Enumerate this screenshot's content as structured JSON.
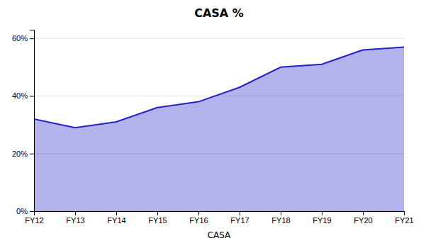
{
  "chart_data": {
    "type": "area",
    "title": "CASA %",
    "xlabel": "CASA",
    "categories": [
      "FY12",
      "FY13",
      "FY14",
      "FY15",
      "FY16",
      "FY17",
      "FY18",
      "FY19",
      "FY20",
      "FY21"
    ],
    "values": [
      32,
      29,
      31,
      36,
      38,
      43,
      50,
      51,
      56,
      57
    ],
    "color": "#2222cc",
    "ylim": [
      0,
      63
    ],
    "yticks": [
      {
        "value": 0,
        "label": "0%"
      },
      {
        "value": 20,
        "label": "20%"
      },
      {
        "value": 40,
        "label": "40%"
      },
      {
        "value": 60,
        "label": "60%"
      }
    ],
    "grid": true
  }
}
